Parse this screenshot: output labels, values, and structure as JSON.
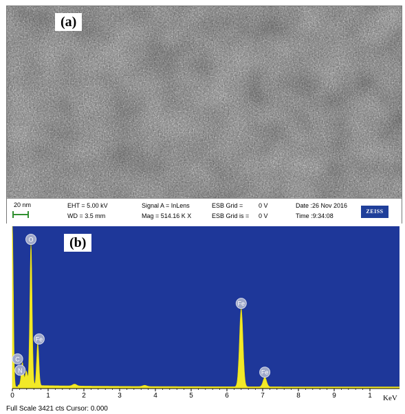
{
  "panel_a": {
    "label": "(a)",
    "info": {
      "scale_bar": "20 nm",
      "eht": "EHT = 5.00 kV",
      "wd": "WD = 3.5 mm",
      "signal": "Signal A = InLens",
      "mag": "Mag = 514.16 K X",
      "esb_grid": "ESB Grid =",
      "esb_grid_val": "0 V",
      "esb_grid_is": "ESB Grid is =",
      "esb_grid_is_val": "0 V",
      "date": "Date :26 Nov 2016",
      "time": "Time :9:34:08",
      "logo": "ZEISS"
    }
  },
  "panel_b": {
    "label": "(b)",
    "footer": "Full Scale 3421 cts Cursor: 0.000",
    "x_unit": "KeV",
    "background_color": "#1e3799",
    "fill_color": "#f2e928"
  },
  "chart_data": {
    "type": "area",
    "x_unit": "KeV",
    "xlim": [
      0,
      10.3
    ],
    "ylim": [
      0,
      3421
    ],
    "x_ticks": [
      "0",
      "1",
      "2",
      "3",
      "4",
      "5",
      "6",
      "7",
      "8",
      "9",
      "1"
    ],
    "peaks": [
      {
        "element": "C",
        "energy": 0.28,
        "counts": 480
      },
      {
        "element": "N",
        "energy": 0.39,
        "counts": 300
      },
      {
        "element": "O",
        "energy": 0.52,
        "counts": 3000
      },
      {
        "element": "Fe",
        "energy": 0.71,
        "counts": 900
      },
      {
        "element": "Fe",
        "energy": 6.4,
        "counts": 1650
      },
      {
        "element": "Fe",
        "energy": 7.06,
        "counts": 200
      }
    ],
    "footer": "Full Scale 3421 cts Cursor: 0.000"
  }
}
